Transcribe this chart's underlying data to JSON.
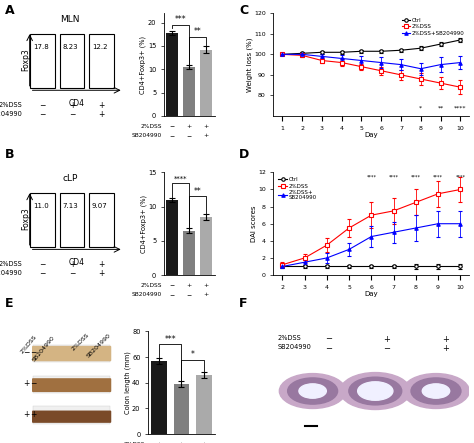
{
  "panel_A": {
    "title": "MLN",
    "flow_values": [
      "17.8",
      "8.23",
      "12.2"
    ],
    "bar_values": [
      17.8,
      10.5,
      14.2
    ],
    "bar_errors": [
      0.5,
      0.5,
      0.7
    ],
    "bar_colors": [
      "#1a1a1a",
      "#808080",
      "#aaaaaa"
    ],
    "ylabel": "CD4+Foxp3+ (%)",
    "ylim": [
      0,
      22
    ],
    "yticks": [
      0,
      5,
      10,
      15,
      20
    ],
    "sig_bar1_bar2": "***",
    "sig_bar2_bar3": "**",
    "xticklabels_dss": [
      "−",
      "+",
      "+"
    ],
    "xticklabels_sb": [
      "−",
      "−",
      "+"
    ]
  },
  "panel_B": {
    "title": "cLP",
    "flow_values": [
      "11.0",
      "7.13",
      "9.07"
    ],
    "bar_values": [
      11.0,
      6.5,
      8.5
    ],
    "bar_errors": [
      0.3,
      0.4,
      0.4
    ],
    "bar_colors": [
      "#1a1a1a",
      "#808080",
      "#aaaaaa"
    ],
    "ylabel": "CD4+Foxp3+ (%)",
    "ylim": [
      0,
      15
    ],
    "yticks": [
      0,
      5,
      10,
      15
    ],
    "sig_bar1_bar2": "****",
    "sig_bar2_bar3": "**",
    "xticklabels_dss": [
      "−",
      "+",
      "+"
    ],
    "xticklabels_sb": [
      "−",
      "−",
      "+"
    ]
  },
  "panel_C": {
    "days": [
      1,
      2,
      3,
      4,
      5,
      6,
      7,
      8,
      9,
      10
    ],
    "ctrl_mean": [
      100,
      100.5,
      101,
      101,
      101.5,
      101.5,
      102,
      103,
      105,
      107
    ],
    "ctrl_err": [
      0.5,
      0.8,
      0.8,
      0.8,
      0.8,
      0.8,
      0.8,
      1.0,
      1.0,
      1.2
    ],
    "dss_mean": [
      100,
      99.5,
      97,
      96,
      94,
      92,
      90,
      88,
      86,
      84
    ],
    "dss_err": [
      0.5,
      1.0,
      1.2,
      1.5,
      1.5,
      2.0,
      2.5,
      3.0,
      3.0,
      3.5
    ],
    "dss_sb_mean": [
      100,
      100,
      99,
      98,
      97,
      96,
      95,
      93,
      95,
      96
    ],
    "dss_sb_err": [
      0.5,
      1.0,
      1.2,
      1.5,
      2.0,
      2.5,
      2.5,
      3.0,
      3.5,
      3.0
    ],
    "ylabel": "Weight loss (%)",
    "xlabel": "Day",
    "ylim": [
      70,
      120
    ],
    "yticks": [
      80,
      90,
      100,
      110,
      120
    ],
    "sig_days": [
      8,
      9,
      10
    ],
    "sig_labels": [
      "*",
      "**",
      "****"
    ]
  },
  "panel_D": {
    "days": [
      2,
      3,
      4,
      5,
      6,
      7,
      8,
      9,
      10
    ],
    "ctrl_mean": [
      1.0,
      1.0,
      1.0,
      1.0,
      1.0,
      1.0,
      1.0,
      1.0,
      1.0
    ],
    "ctrl_err": [
      0.2,
      0.2,
      0.2,
      0.2,
      0.2,
      0.2,
      0.3,
      0.3,
      0.3
    ],
    "dss_mean": [
      1.2,
      2.0,
      3.5,
      5.5,
      7.0,
      7.5,
      8.5,
      9.5,
      10.0
    ],
    "dss_err": [
      0.3,
      0.5,
      0.8,
      1.0,
      1.5,
      1.5,
      1.5,
      1.5,
      1.5
    ],
    "dss_sb_mean": [
      1.0,
      1.5,
      2.0,
      3.0,
      4.5,
      5.0,
      5.5,
      6.0,
      6.0
    ],
    "dss_sb_err": [
      0.2,
      0.4,
      0.6,
      0.8,
      1.2,
      1.2,
      1.5,
      1.5,
      1.5
    ],
    "ylabel": "DAI scores",
    "xlabel": "Day",
    "ylim": [
      0,
      12
    ],
    "yticks": [
      0,
      2,
      4,
      6,
      8,
      10,
      12
    ],
    "sig_days": [
      6,
      7,
      8,
      9,
      10
    ],
    "sig_labels": [
      "****",
      "****",
      "****",
      "****",
      "****"
    ]
  },
  "panel_E": {
    "bar_values": [
      57,
      39,
      46
    ],
    "bar_errors": [
      2.0,
      2.5,
      2.5
    ],
    "bar_colors": [
      "#1a1a1a",
      "#808080",
      "#aaaaaa"
    ],
    "ylabel": "Colon length (mm)",
    "ylim": [
      0,
      80
    ],
    "yticks": [
      0,
      20,
      40,
      60,
      80
    ],
    "sig_bar1_bar2": "***",
    "sig_bar2_bar3": "*",
    "xticklabels_dss": [
      "+",
      "+",
      "+"
    ],
    "xticklabels_sb": [
      "−",
      "−",
      "+"
    ]
  },
  "background_color": "#ffffff"
}
